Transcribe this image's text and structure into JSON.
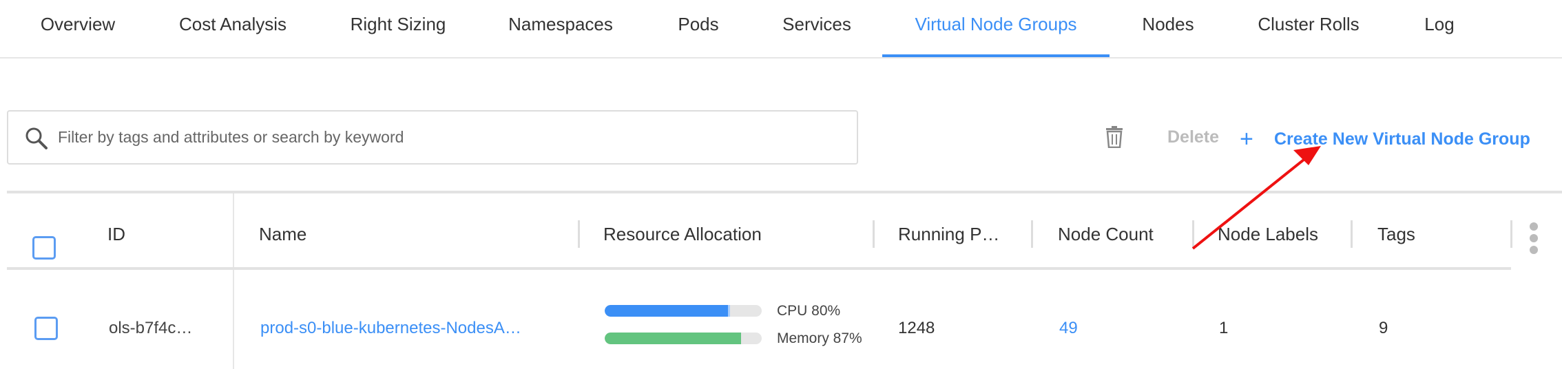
{
  "tabs": [
    {
      "label": "Overview"
    },
    {
      "label": "Cost Analysis"
    },
    {
      "label": "Right Sizing"
    },
    {
      "label": "Namespaces"
    },
    {
      "label": "Pods"
    },
    {
      "label": "Services"
    },
    {
      "label": "Virtual Node Groups",
      "active": true
    },
    {
      "label": "Nodes"
    },
    {
      "label": "Cluster Rolls"
    },
    {
      "label": "Log"
    }
  ],
  "search": {
    "placeholder": "Filter by tags and attributes or search by keyword",
    "value": ""
  },
  "toolbar": {
    "delete_label": "Delete",
    "create_label": "Create New Virtual Node Group"
  },
  "table": {
    "headers": [
      "ID",
      "Name",
      "Resource Allocation",
      "Running P…",
      "Node Count",
      "Node Labels",
      "Tags"
    ],
    "rows": [
      {
        "id": "ols-b7f4c…",
        "name": "prod-s0-blue-kubernetes-NodesA…",
        "cpu_label": "CPU 80%",
        "cpu": 80,
        "memory_label": "Memory 87%",
        "memory": 87,
        "running_pods": "1248",
        "node_count": "49",
        "node_labels": "1",
        "tags": "9"
      }
    ]
  },
  "colors": {
    "accent": "#3b8ff6",
    "cpu": "#3b8ff6",
    "memory": "#63c47f",
    "annotation_arrow": "#ee1111"
  }
}
